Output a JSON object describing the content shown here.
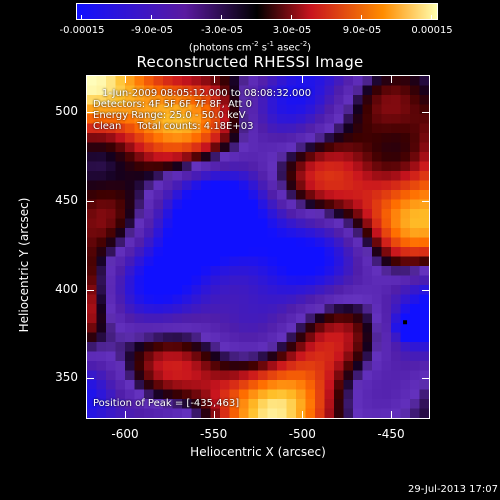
{
  "colorbar": {
    "labels": [
      "-0.00015",
      "-9.0e-05",
      "-3.0e-05",
      "3.0e-05",
      "9.0e-05",
      "0.00015"
    ],
    "units_prefix": "(photons cm",
    "units_exp1": "-2",
    "units_mid": " s",
    "units_exp2": "-1",
    "units_mid2": " asec",
    "units_exp3": "-2",
    "units_suffix": ")",
    "colors": [
      "#1010ff",
      "#5a1aa0",
      "#000000",
      "#c8141e",
      "#ff8c00",
      "#ffffb0"
    ]
  },
  "title": "Reconstructed RHESSI Image",
  "annotations": {
    "time": "1-Jun-2009 08:05:12.000 to 08:08:32.000",
    "detectors": "Detectors: 4F 5F 6F 7F 8F, Att 0",
    "energy": "Energy Range: 25.0 - 50.0 keV",
    "clean": "Clean     Total counts: 4.18E+03",
    "peak": "Position of Peak = [-435,463]"
  },
  "chart_data": {
    "type": "heatmap",
    "title": "Reconstructed RHESSI Image",
    "xlabel": "Heliocentric X (arcsec)",
    "ylabel": "Heliocentric Y (arcsec)",
    "xlim": [
      -622,
      -428
    ],
    "ylim": [
      327,
      521
    ],
    "xticks": [
      -600,
      -550,
      -500,
      -450
    ],
    "yticks": [
      350,
      400,
      450,
      500
    ],
    "xtick_labels": [
      "-600",
      "-550",
      "-500",
      "-450"
    ],
    "ytick_labels": [
      "350",
      "400",
      "450",
      "500"
    ],
    "colorbar_range": [
      -0.00015,
      0.00015
    ],
    "peak_position": [
      -435,
      463
    ]
  },
  "timestamp": "29-Jul-2013 17:07"
}
